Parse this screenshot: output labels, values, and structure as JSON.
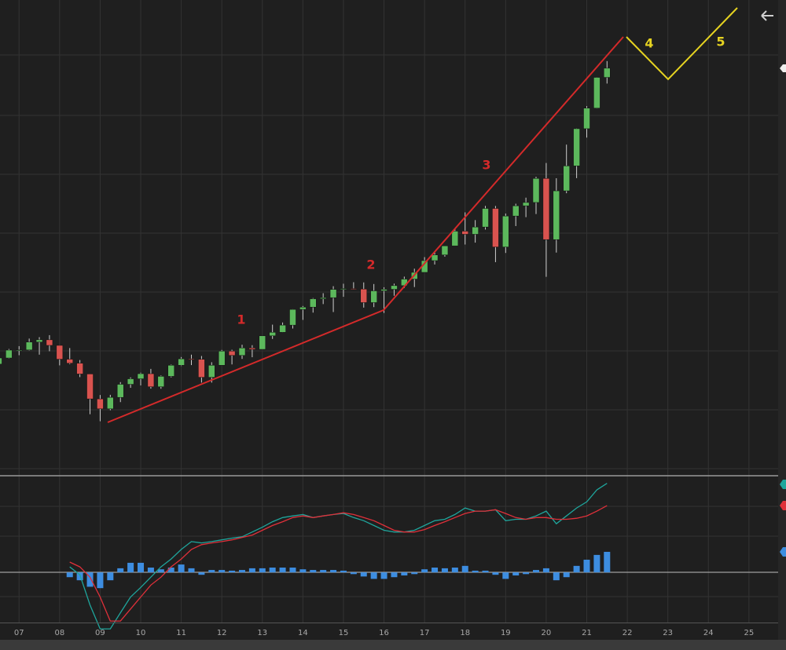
{
  "chart_data": [
    {
      "type": "candlestick",
      "x": [
        2006.5,
        2006.75,
        2007,
        2007.25,
        2007.5,
        2007.75,
        2008,
        2008.25,
        2008.5,
        2008.75,
        2009,
        2009.25,
        2009.5,
        2009.75,
        2010,
        2010.25,
        2010.5,
        2010.75,
        2011,
        2011.25,
        2011.5,
        2011.75,
        2012,
        2012.25,
        2012.5,
        2012.75,
        2013,
        2013.25,
        2013.5,
        2013.75,
        2014,
        2014.25,
        2014.5,
        2014.75,
        2015,
        2015.25,
        2015.5,
        2015.75,
        2016,
        2016.25,
        2016.5,
        2016.75,
        2017,
        2017.25,
        2017.5,
        2017.75,
        2018,
        2018.25,
        2018.5,
        2018.75,
        2019,
        2019.25,
        2019.5,
        2019.75,
        2020,
        2020.25,
        2020.5,
        2020.75,
        2021,
        2021.25,
        2021.5
      ],
      "open": [
        1270,
        1335,
        1418,
        1420,
        1503,
        1527,
        1468,
        1322,
        1280,
        1166,
        903,
        798,
        919,
        1057,
        1115,
        1169,
        1031,
        1141,
        1258,
        1326,
        1321,
        1131,
        1258,
        1408,
        1362,
        1441,
        1426,
        1569,
        1606,
        1682,
        1848,
        1872,
        1960,
        1972,
        2059,
        2068,
        2063,
        1920,
        2044,
        2060,
        2099,
        2168,
        2239,
        2363,
        2423,
        2519,
        2674,
        2641,
        2718,
        2914,
        2507,
        2834,
        2942,
        2977,
        3231,
        2585,
        3100,
        3363,
        3756,
        3973,
        4298
      ],
      "high": [
        1340,
        1430,
        1460,
        1540,
        1555,
        1576,
        1470,
        1440,
        1313,
        1167,
        944,
        946,
        1080,
        1130,
        1180,
        1220,
        1150,
        1265,
        1345,
        1370,
        1356,
        1290,
        1420,
        1422,
        1475,
        1470,
        1570,
        1687,
        1710,
        1850,
        1884,
        1968,
        2019,
        2093,
        2119,
        2135,
        2133,
        2116,
        2082,
        2120,
        2194,
        2278,
        2400,
        2454,
        2519,
        2695,
        2873,
        2791,
        2941,
        2940,
        2860,
        2964,
        3028,
        3248,
        3394,
        3233,
        3588,
        3760,
        3994,
        4300,
        4470
      ],
      "low": [
        1225,
        1330,
        1364,
        1415,
        1370,
        1406,
        1257,
        1270,
        1133,
        741,
        667,
        783,
        869,
        1020,
        1045,
        1011,
        1010,
        1130,
        1250,
        1260,
        1075,
        1075,
        1258,
        1267,
        1325,
        1343,
        1426,
        1536,
        1604,
        1646,
        1737,
        1814,
        1904,
        1820,
        1981,
        2057,
        1867,
        1872,
        1810,
        1992,
        2074,
        2084,
        2239,
        2322,
        2405,
        2519,
        2533,
        2553,
        2691,
        2347,
        2444,
        2728,
        2822,
        2855,
        2192,
        2448,
        3075,
        3234,
        3662,
        3970,
        4233
      ],
      "close": [
        1335,
        1418,
        1420,
        1503,
        1527,
        1468,
        1322,
        1280,
        1166,
        903,
        798,
        919,
        1057,
        1115,
        1169,
        1031,
        1141,
        1258,
        1326,
        1321,
        1131,
        1258,
        1408,
        1362,
        1441,
        1426,
        1569,
        1606,
        1682,
        1848,
        1872,
        1960,
        1972,
        2059,
        2068,
        2063,
        1920,
        2044,
        2060,
        2099,
        2168,
        2239,
        2363,
        2423,
        2519,
        2674,
        2641,
        2718,
        2914,
        2507,
        2834,
        2942,
        2977,
        3231,
        2585,
        3100,
        3363,
        3756,
        3973,
        4298,
        4395
      ],
      "up_color": "#5cb85c",
      "down_color": "#d9534f",
      "xlim": [
        2006.53,
        2025.72
      ],
      "ylim": [
        100,
        5115
      ],
      "xticks": [
        {
          "value": 2007,
          "label": "07"
        },
        {
          "value": 2008,
          "label": "08"
        },
        {
          "value": 2009,
          "label": "09"
        },
        {
          "value": 2010,
          "label": "10"
        },
        {
          "value": 2011,
          "label": "11"
        },
        {
          "value": 2012,
          "label": "12"
        },
        {
          "value": 2013,
          "label": "13"
        },
        {
          "value": 2014,
          "label": "14"
        },
        {
          "value": 2015,
          "label": "15"
        },
        {
          "value": 2016,
          "label": "16"
        },
        {
          "value": 2017,
          "label": "17"
        },
        {
          "value": 2018,
          "label": "18"
        },
        {
          "value": 2019,
          "label": "19"
        },
        {
          "value": 2020,
          "label": "20"
        },
        {
          "value": 2021,
          "label": "21"
        },
        {
          "value": 2022,
          "label": "22"
        },
        {
          "value": 2023,
          "label": "23"
        },
        {
          "value": 2024,
          "label": "24"
        },
        {
          "value": 2025,
          "label": "25"
        }
      ],
      "grid": true,
      "annotations": [
        "1",
        "2",
        "3",
        "4",
        "5"
      ]
    },
    {
      "type": "line",
      "x": [
        2008.25,
        2008.5,
        2008.75,
        2009,
        2009.25,
        2009.5,
        2009.75,
        2010,
        2010.25,
        2010.5,
        2010.75,
        2011,
        2011.25,
        2011.5,
        2011.75,
        2012,
        2012.25,
        2012.5,
        2012.75,
        2013,
        2013.25,
        2013.5,
        2013.75,
        2014,
        2014.25,
        2014.5,
        2014.75,
        2015,
        2015.25,
        2015.5,
        2015.75,
        2016,
        2016.25,
        2016.5,
        2016.75,
        2017,
        2017.25,
        2017.5,
        2017.75,
        2018,
        2018.25,
        2018.5,
        2018.75,
        2019,
        2019.25,
        2019.5,
        2019.75,
        2020,
        2020.25,
        2020.5,
        2020.75,
        2021,
        2021.25,
        2021.5
      ],
      "series": [
        {
          "color": "#1fa59c",
          "values": [
            16,
            -7,
            -95,
            -165,
            -165,
            -118,
            -72,
            -44,
            -14,
            16,
            39,
            67,
            90,
            86,
            90,
            95,
            100,
            104,
            118,
            132,
            148,
            160,
            165,
            169,
            160,
            165,
            169,
            172,
            160,
            151,
            137,
            123,
            118,
            118,
            123,
            137,
            151,
            155,
            169,
            188,
            179,
            179,
            183,
            151,
            155,
            155,
            165,
            179,
            142,
            165,
            188,
            206,
            241,
            260
          ]
        },
        {
          "color": "#e0303a",
          "values": [
            30,
            16,
            -14,
            -72,
            -142,
            -142,
            -107,
            -72,
            -37,
            -14,
            16,
            39,
            67,
            81,
            86,
            90,
            95,
            102,
            109,
            123,
            137,
            148,
            160,
            165,
            160,
            165,
            169,
            174,
            169,
            160,
            151,
            137,
            123,
            118,
            118,
            125,
            137,
            148,
            160,
            172,
            179,
            179,
            183,
            172,
            160,
            155,
            160,
            160,
            155,
            155,
            158,
            165,
            179,
            195
          ]
        }
      ],
      "histogram": {
        "color": "#3d8de0",
        "values": [
          -14,
          -23,
          -42,
          -46,
          -23,
          12,
          28,
          28,
          14,
          9,
          14,
          23,
          12,
          -7,
          7,
          7,
          5,
          7,
          12,
          12,
          14,
          14,
          14,
          9,
          7,
          7,
          7,
          5,
          -5,
          -12,
          -19,
          -19,
          -14,
          -9,
          -5,
          9,
          14,
          12,
          14,
          19,
          5,
          5,
          -7,
          -19,
          -9,
          -5,
          7,
          12,
          -23,
          -14,
          19,
          37,
          51,
          60
        ]
      },
      "xlim": [
        2006.53,
        2025.72
      ],
      "ylim": [
        -190,
        280
      ]
    }
  ]
}
